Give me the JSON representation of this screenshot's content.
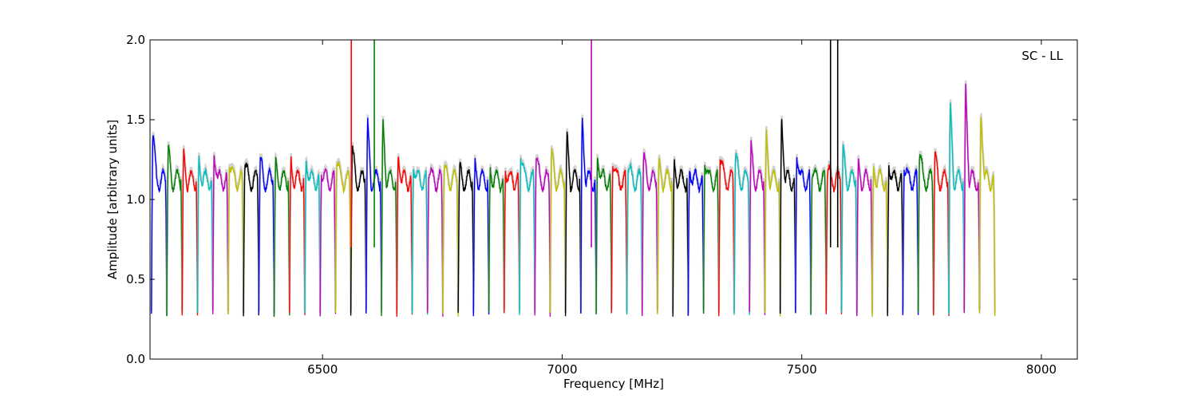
{
  "chart_data": {
    "type": "line",
    "title": "",
    "xlabel": "Frequency [MHz]",
    "ylabel": "Amplitude [arbitrary units]",
    "annotation": "SC - LL",
    "xlim": [
      6140,
      8075
    ],
    "ylim": [
      0.0,
      2.0
    ],
    "x_ticks": [
      6500,
      7000,
      7500,
      8000
    ],
    "x_tick_labels": [
      "6500",
      "7000",
      "7500",
      "8000"
    ],
    "y_ticks": [
      0.0,
      0.5,
      1.0,
      1.5,
      2.0
    ],
    "y_tick_labels": [
      "0.0",
      "0.5",
      "1.0",
      "1.5",
      "2.0"
    ],
    "grid": false,
    "legend": "none",
    "background_trace_color": "#bfbfbf",
    "colors": [
      "#0000ff",
      "#008000",
      "#ff0000",
      "#00bfbf",
      "#bf00bf",
      "#bfbf00",
      "#000000"
    ],
    "channel_start": 6143,
    "channel_width": 32,
    "channel_peaks": [
      1.4,
      1.29,
      1.26,
      1.26,
      1.3,
      1.25,
      1.22,
      1.22,
      1.2,
      1.23,
      1.26,
      1.18,
      1.25,
      1.3,
      1.44,
      1.47,
      1.29,
      1.23,
      1.18,
      1.18,
      1.17,
      1.2,
      1.19,
      1.2,
      1.3,
      1.26,
      1.27,
      1.38,
      1.5,
      1.3,
      1.25,
      1.2,
      1.25,
      1.2,
      1.22,
      1.21,
      1.26,
      1.28,
      1.26,
      1.3,
      1.38,
      1.51,
      1.3,
      1.18,
      1.17,
      1.28,
      1.2,
      1.2,
      1.24,
      1.22,
      1.29,
      1.25,
      1.56,
      1.7,
      1.56
    ],
    "spikes": [
      {
        "x": 6560,
        "color": "#ff0000"
      },
      {
        "x": 6608,
        "color": "#008000"
      },
      {
        "x": 7061,
        "color": "#bf00bf"
      },
      {
        "x": 7560,
        "color": "#000000"
      },
      {
        "x": 7575,
        "color": "#000000"
      }
    ]
  }
}
